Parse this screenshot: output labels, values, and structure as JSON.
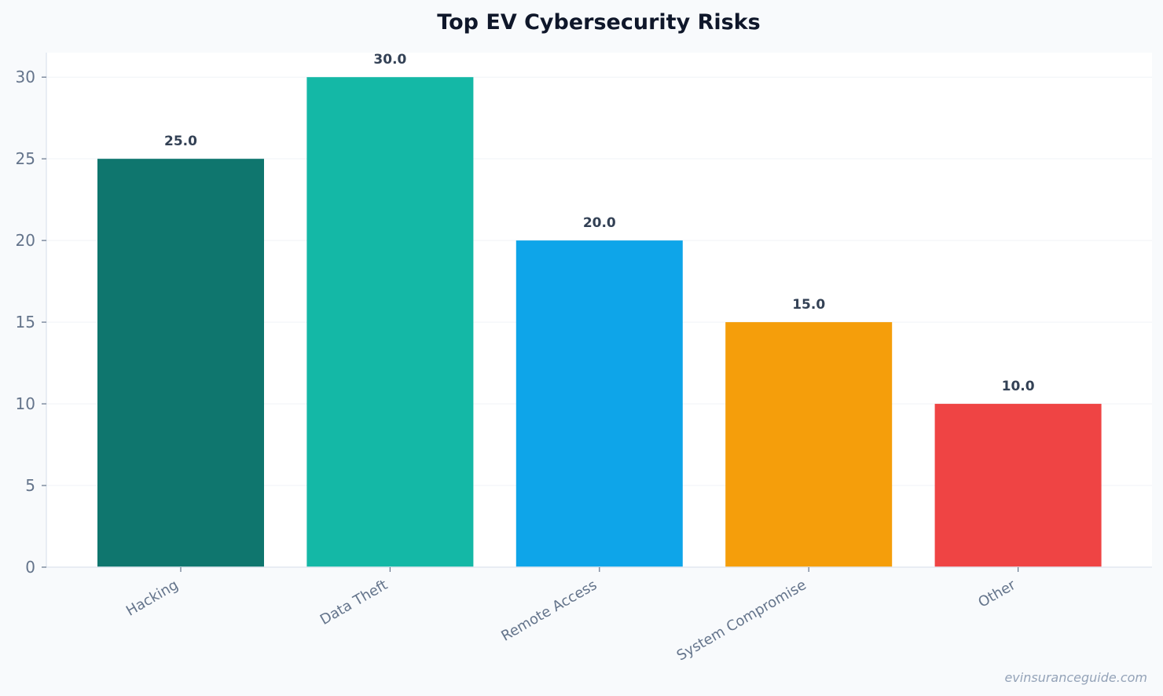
{
  "chart_data": {
    "type": "bar",
    "title": "Top EV Cybersecurity Risks",
    "categories": [
      "Hacking",
      "Data Theft",
      "Remote Access",
      "System Compromise",
      "Other"
    ],
    "values": [
      25.0,
      30.0,
      20.0,
      15.0,
      10.0
    ],
    "data_labels": [
      "25.0",
      "30.0",
      "20.0",
      "15.0",
      "10.0"
    ],
    "colors": [
      "#0f766e",
      "#14b8a6",
      "#0ea5e9",
      "#f59e0b",
      "#ef4444"
    ],
    "ylim": [
      0,
      31.5
    ],
    "yticks": [
      0,
      5,
      10,
      15,
      20,
      25,
      30
    ],
    "ytick_labels": [
      "0",
      "5",
      "10",
      "15",
      "20",
      "25",
      "30"
    ],
    "xlabel": "",
    "ylabel": "",
    "grid": true,
    "legend": "none"
  },
  "footer": {
    "watermark": "evinsuranceguide.com"
  }
}
